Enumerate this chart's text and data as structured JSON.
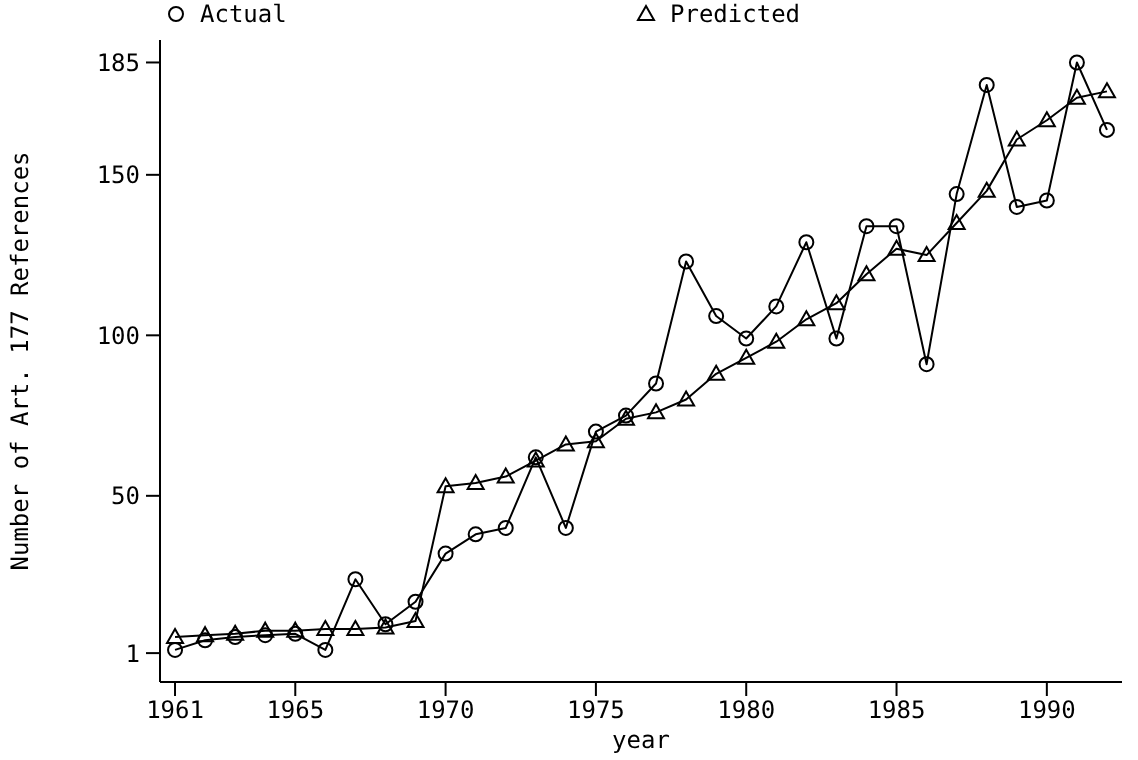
{
  "chart_data": {
    "type": "line",
    "xlabel": "year",
    "ylabel": "Number of Art. 177 References",
    "x": [
      1961,
      1962,
      1963,
      1964,
      1965,
      1966,
      1967,
      1968,
      1969,
      1970,
      1971,
      1972,
      1973,
      1974,
      1975,
      1976,
      1977,
      1978,
      1979,
      1980,
      1981,
      1982,
      1983,
      1984,
      1985,
      1986,
      1987,
      1988,
      1989,
      1990,
      1991,
      1992
    ],
    "series": [
      {
        "name": "Actual",
        "color": "#000000",
        "marker": "circle",
        "values": [
          2,
          5,
          6,
          6.6,
          7,
          2,
          24,
          10,
          17,
          32,
          38,
          40,
          62,
          40,
          70,
          75,
          85,
          123,
          106,
          99,
          109,
          129,
          99,
          134,
          134,
          91,
          144,
          178,
          140,
          142,
          185,
          164
        ]
      },
      {
        "name": "Predicted",
        "color": "#000000",
        "marker": "triangle",
        "values": [
          6,
          6.6,
          7,
          8,
          8,
          8.5,
          8.5,
          9,
          11,
          53,
          54,
          56,
          61,
          66,
          67,
          74,
          76,
          80,
          88,
          93,
          98,
          105,
          110,
          119,
          127,
          125,
          135,
          145,
          161,
          167,
          174,
          176
        ]
      }
    ],
    "xlim": [
      1960.5,
      1992.5
    ],
    "ylim": [
      -8,
      192
    ],
    "xticks": [
      1961,
      1965,
      1970,
      1975,
      1980,
      1985,
      1990
    ],
    "yticks": [
      1,
      50,
      100,
      150,
      185
    ],
    "legend": "top",
    "grid": false,
    "line_style": "solid"
  }
}
